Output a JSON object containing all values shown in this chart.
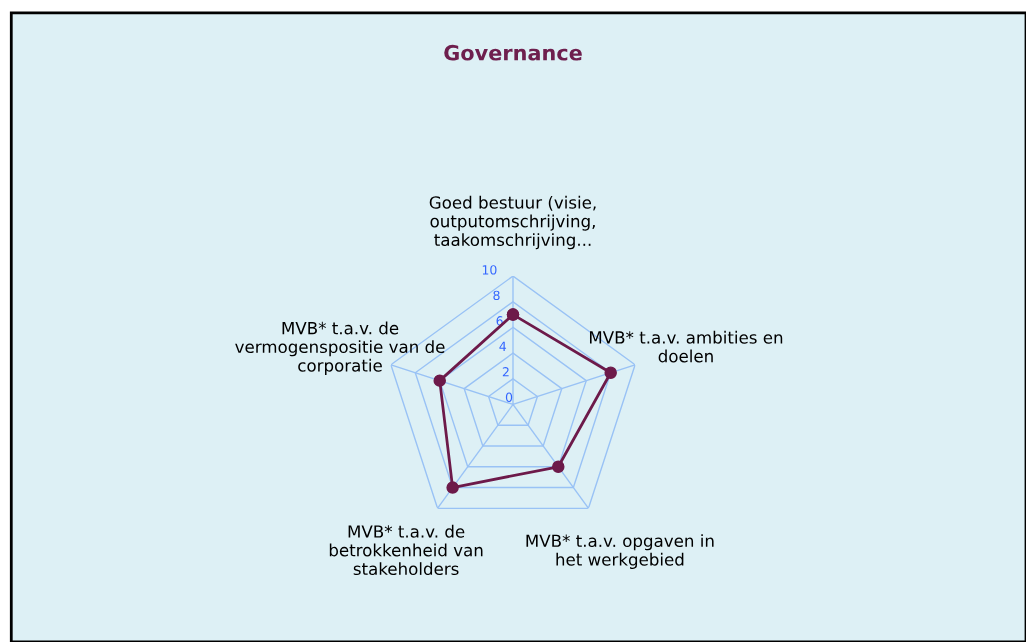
{
  "chart_data": {
    "type": "radar",
    "title": "Governance",
    "categories": [
      "Goed bestuur (visie, outputomschrijving, taakomschrijving...",
      "MVB* t.a.v. ambities en doelen",
      "MVB* t.a.v. opgaven in het werkgebied",
      "MVB* t.a.v. de betrokkenheid van stakeholders",
      "MVB* t.a.v. de vermogenspositie van de corporatie"
    ],
    "series": [
      {
        "color": "#6d1a4a",
        "values": [
          7,
          8,
          6,
          8,
          6
        ]
      }
    ],
    "ylim": [
      0,
      10
    ],
    "yticks": [
      0,
      2,
      4,
      6,
      8,
      10
    ],
    "grid": true,
    "marker": "circle"
  }
}
